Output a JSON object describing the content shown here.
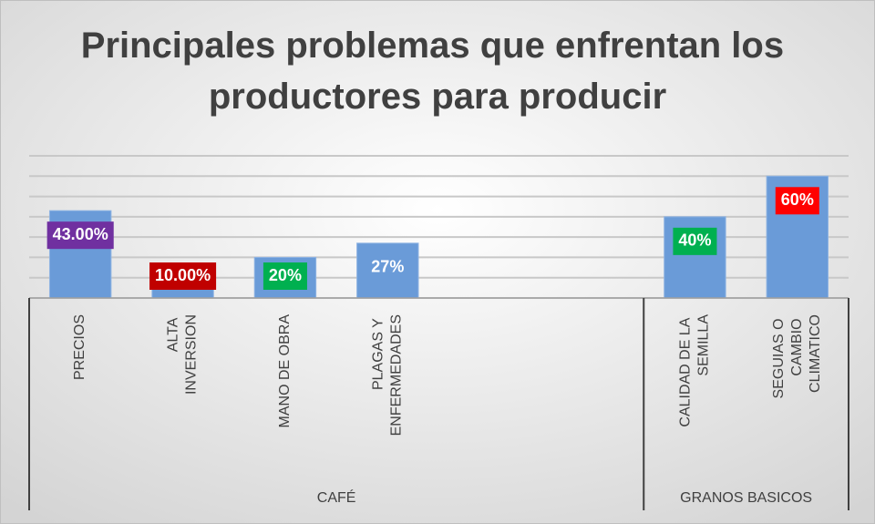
{
  "chart_data": {
    "type": "bar",
    "title": "Principales problemas que enfrentan los productores para producir",
    "categories": [
      "PRECIOS",
      "ALTA INVERSION",
      "MANO DE OBRA",
      "PLAGAS Y ENFERMEDADES",
      null,
      null,
      "CALIDAD DE LA SEMILLA",
      "SEGUIAS O CAMBIO CLIMATICO"
    ],
    "values": [
      43,
      10,
      20,
      27,
      null,
      null,
      40,
      60
    ],
    "value_labels": [
      "43.00%",
      "10.00%",
      "20%",
      "27%",
      null,
      null,
      "40%",
      "60%"
    ],
    "label_colors": [
      "#7030a0",
      "#c00000",
      "#00b050",
      null,
      null,
      null,
      "#00b050",
      "#ff0000"
    ],
    "groups": [
      {
        "label": "CAFÉ",
        "count": 6
      },
      {
        "label": "GRANOS BASICOS",
        "count": 2
      }
    ],
    "color": "#6a9bd8",
    "ylim": [
      0,
      70
    ],
    "yticks": [
      0,
      10,
      20,
      30,
      40,
      50,
      60,
      70
    ],
    "grid": true
  }
}
